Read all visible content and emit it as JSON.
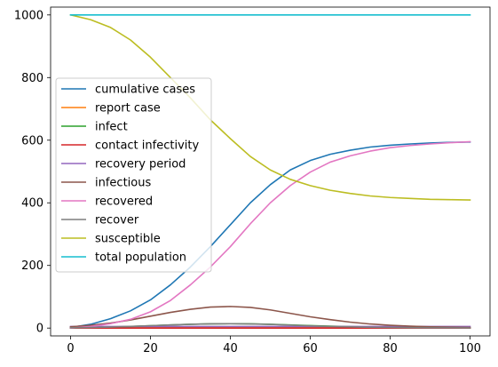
{
  "chart_data": {
    "type": "line",
    "title": "",
    "xlabel": "",
    "ylabel": "",
    "xlim": [
      -5,
      105
    ],
    "ylim": [
      -25,
      1025
    ],
    "grid": false,
    "legend_position": "center-left",
    "x_ticks": [
      0,
      20,
      40,
      60,
      80,
      100
    ],
    "y_ticks": [
      0,
      200,
      400,
      600,
      800,
      1000
    ],
    "x": [
      0,
      5,
      10,
      15,
      20,
      25,
      30,
      35,
      40,
      45,
      50,
      55,
      60,
      65,
      70,
      75,
      80,
      85,
      90,
      95,
      100
    ],
    "series": [
      {
        "name": "cumulative cases",
        "color": "#1f77b4",
        "values": [
          2,
          12,
          30,
          55,
          90,
          138,
          195,
          260,
          330,
          400,
          458,
          505,
          535,
          555,
          568,
          578,
          584,
          588,
          591,
          593,
          594
        ]
      },
      {
        "name": "report case",
        "color": "#ff7f0e",
        "values": [
          0.1,
          0.3,
          0.6,
          1,
          1.4,
          1.8,
          2.1,
          2.3,
          2.4,
          2.3,
          2.1,
          1.8,
          1.5,
          1.2,
          0.9,
          0.7,
          0.5,
          0.4,
          0.3,
          0.2,
          0.2
        ]
      },
      {
        "name": "infect",
        "color": "#2ca02c",
        "values": [
          0.5,
          1.5,
          3,
          5,
          7.5,
          10,
          12,
          13.5,
          14,
          13.5,
          12,
          10,
          8,
          6,
          4.5,
          3.2,
          2.3,
          1.6,
          1.1,
          0.8,
          0.5
        ]
      },
      {
        "name": "contact infectivity",
        "color": "#d62728",
        "values": [
          0.1,
          0.1,
          0.1,
          0.1,
          0.1,
          0.1,
          0.1,
          0.1,
          0.1,
          0.1,
          0.1,
          0.1,
          0.1,
          0.1,
          0.1,
          0.1,
          0.1,
          0.1,
          0.1,
          0.1,
          0.1
        ]
      },
      {
        "name": "recovery period",
        "color": "#9467bd",
        "values": [
          5,
          5,
          5,
          5,
          5,
          5,
          5,
          5,
          5,
          5,
          5,
          5,
          5,
          5,
          5,
          5,
          5,
          5,
          5,
          5,
          5
        ]
      },
      {
        "name": "infectious",
        "color": "#8c564b",
        "values": [
          4,
          9,
          16,
          26,
          38,
          50,
          60,
          67,
          69,
          66,
          58,
          47,
          36,
          27,
          19,
          13,
          9,
          6,
          4,
          3,
          2
        ]
      },
      {
        "name": "recovered",
        "color": "#e377c2",
        "values": [
          0,
          5,
          14,
          28,
          52,
          88,
          138,
          195,
          260,
          333,
          400,
          455,
          498,
          530,
          550,
          565,
          576,
          583,
          588,
          592,
          595
        ]
      },
      {
        "name": "recover",
        "color": "#7f7f7f",
        "values": [
          0.8,
          1.8,
          3.2,
          5.2,
          7.6,
          10,
          12,
          13.4,
          13.8,
          13.2,
          11.6,
          9.4,
          7.2,
          5.4,
          3.8,
          2.6,
          1.8,
          1.2,
          0.8,
          0.6,
          0.4
        ]
      },
      {
        "name": "susceptible",
        "color": "#bcbd22",
        "values": [
          1000,
          985,
          960,
          920,
          865,
          800,
          735,
          665,
          605,
          548,
          505,
          475,
          455,
          440,
          430,
          422,
          417,
          414,
          411,
          410,
          409
        ]
      },
      {
        "name": "total population",
        "color": "#17becf",
        "values": [
          1000,
          1000,
          1000,
          1000,
          1000,
          1000,
          1000,
          1000,
          1000,
          1000,
          1000,
          1000,
          1000,
          1000,
          1000,
          1000,
          1000,
          1000,
          1000,
          1000,
          1000
        ]
      }
    ]
  }
}
